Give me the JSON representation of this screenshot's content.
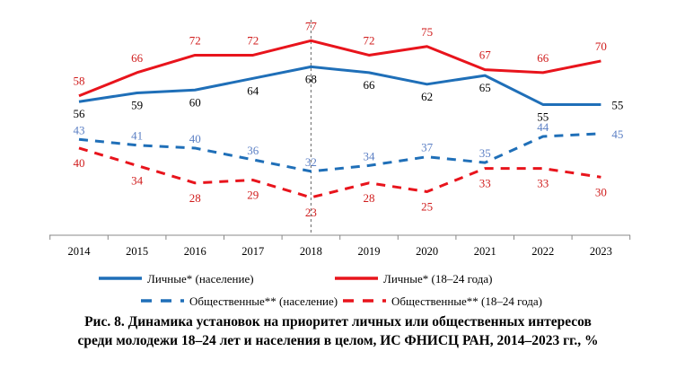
{
  "chart_data": {
    "type": "line",
    "x": [
      "2014",
      "2015",
      "2016",
      "2017",
      "2018",
      "2019",
      "2020",
      "2021",
      "2022",
      "2023"
    ],
    "ylim": [
      10,
      91
    ],
    "grid": false,
    "legend_position": "bottom",
    "highlight_x": "2018",
    "series": [
      {
        "name": "Личные* (население)",
        "values": [
          56,
          59,
          60,
          64,
          68,
          66,
          62,
          65,
          55,
          55
        ],
        "color": "#1f6fb8",
        "dash": false,
        "label_color": "#000000",
        "label_pos": "below"
      },
      {
        "name": "Личные* (18–24 года)",
        "values": [
          58,
          66,
          72,
          72,
          77,
          72,
          75,
          67,
          66,
          70
        ],
        "color": "#e8141c",
        "dash": false,
        "label_color": "#d01c1c",
        "label_pos": "above"
      },
      {
        "name": "Общественные** (население)",
        "values": [
          43,
          41,
          40,
          36,
          32,
          34,
          37,
          35,
          44,
          45
        ],
        "color": "#1f6fb8",
        "dash": true,
        "label_color": "#5b7fc4",
        "label_pos": "above"
      },
      {
        "name": "Общественные** (18–24 года)",
        "values": [
          40,
          34,
          28,
          29,
          23,
          28,
          25,
          33,
          33,
          30
        ],
        "color": "#e8141c",
        "dash": true,
        "label_color": "#d01c1c",
        "label_pos": "below"
      }
    ]
  },
  "caption": {
    "line1": "Рис. 8. Динамика установок на приоритет личных или общественных интересов",
    "line2": "среди молодежи 18–24 лет и населения в целом, ИС ФНИСЦ РАН, 2014–2023 гг., %"
  }
}
